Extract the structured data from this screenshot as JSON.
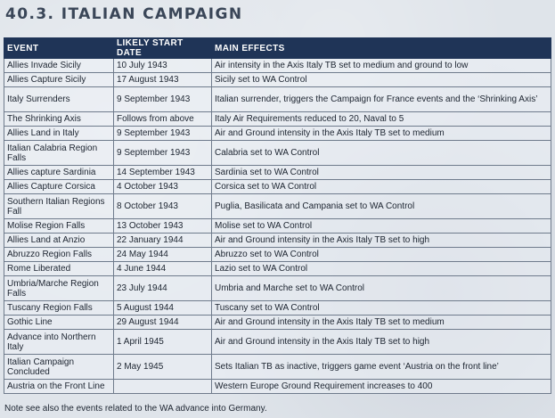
{
  "title": "40.3. ITALIAN CAMPAIGN",
  "table": {
    "headers": [
      "EVENT",
      "LIKELY START DATE",
      "MAIN EFFECTS"
    ],
    "rows": [
      {
        "event": "Allies Invade Sicily",
        "date": "10 July 1943",
        "effects": "Air intensity in the Axis Italy TB set to medium and ground to low"
      },
      {
        "event": "Allies Capture Sicily",
        "date": "17 August 1943",
        "effects": "Sicily set to WA Control"
      },
      {
        "event": "Italy Surrenders",
        "date": "9 September 1943",
        "effects": "Italian surrender, triggers the Campaign for France events and the ‘Shrinking Axis’"
      },
      {
        "event": "The Shrinking Axis",
        "date": "Follows from above",
        "effects": "Italy Air Requirements reduced to 20, Naval to 5"
      },
      {
        "event": "Allies Land in Italy",
        "date": "9 September 1943",
        "effects": "Air and Ground intensity in the Axis Italy TB set to medium"
      },
      {
        "event": "Italian Calabria Region Falls",
        "date": "9 September 1943",
        "effects": "Calabria set to WA Control"
      },
      {
        "event": "Allies capture Sardinia",
        "date": "14 September 1943",
        "effects": "Sardinia set to WA Control"
      },
      {
        "event": "Allies Capture Corsica",
        "date": "4 October 1943",
        "effects": "Corsica set to WA Control"
      },
      {
        "event": "Southern Italian Regions Fall",
        "date": "8 October 1943",
        "effects": "Puglia, Basilicata and Campania set to WA Control"
      },
      {
        "event": "Molise Region Falls",
        "date": "13 October 1943",
        "effects": "Molise set to WA Control"
      },
      {
        "event": "Allies Land at Anzio",
        "date": "22 January 1944",
        "effects": "Air and Ground intensity in the Axis Italy TB set to high"
      },
      {
        "event": "Abruzzo Region Falls",
        "date": "24 May 1944",
        "effects": "Abruzzo set to WA Control"
      },
      {
        "event": "Rome Liberated",
        "date": "4 June 1944",
        "effects": "Lazio set to WA Control"
      },
      {
        "event": "Umbria/Marche Region Falls",
        "date": "23 July 1944",
        "effects": "Umbria and Marche set to WA Control"
      },
      {
        "event": "Tuscany Region Falls",
        "date": "5 August 1944",
        "effects": "Tuscany set to WA Control"
      },
      {
        "event": "Gothic Line",
        "date": "29 August 1944",
        "effects": "Air and Ground intensity in the Axis Italy TB set to medium"
      },
      {
        "event": "Advance into Northern Italy",
        "date": "1 April 1945",
        "effects": "Air and Ground intensity in the Axis Italy TB set to high"
      },
      {
        "event": "Italian Campaign Concluded",
        "date": "2 May 1945",
        "effects": "Sets Italian TB as inactive, triggers game event ‘Austria on the front line’"
      },
      {
        "event": "Austria on the Front Line",
        "date": "",
        "effects": "Western Europe Ground Requirement increases to 400"
      }
    ]
  },
  "note": "Note see also the events related to the WA advance into Germany."
}
